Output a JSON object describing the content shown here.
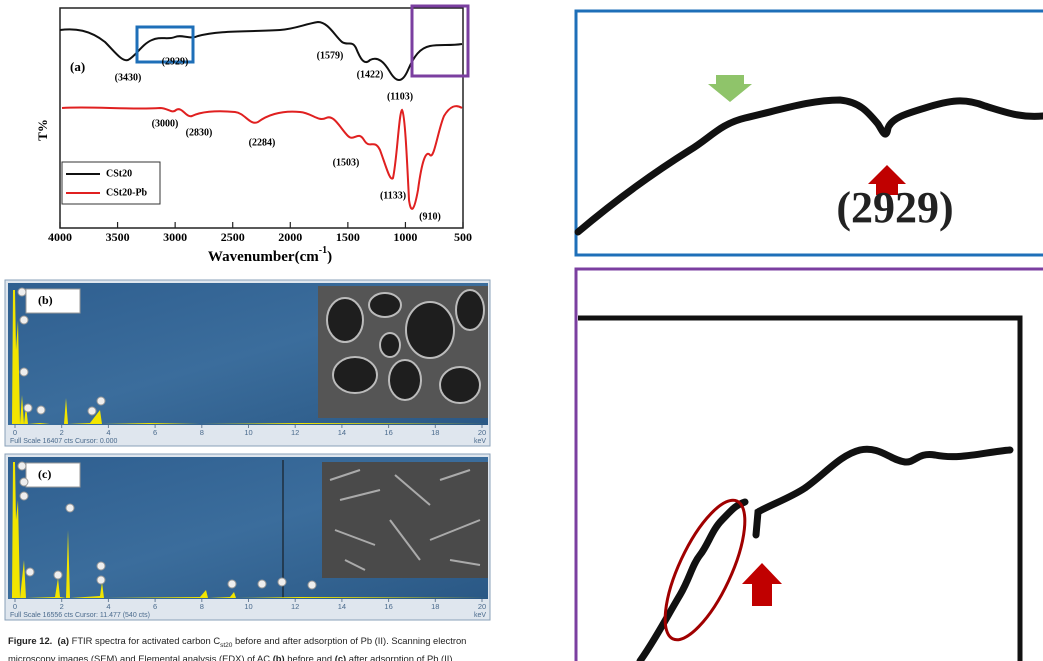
{
  "figure": {
    "panel_a": {
      "label": "(a)",
      "ylabel": "T%",
      "xlabel": "Wavenumber(cm",
      "xlabel_sup": "-1",
      "xlabel_end": ")",
      "xlim": [
        4000,
        500
      ],
      "xticks": [
        4000,
        3500,
        3000,
        2500,
        2000,
        1500,
        1000,
        500
      ],
      "legend": [
        {
          "name": "CSt20",
          "color": "#111111"
        },
        {
          "name": "CSt20-Pb",
          "color": "#e02020"
        }
      ],
      "peaks_black": [
        "(3430)",
        "(2929)",
        "(1579)",
        "(1422)",
        "(1103)"
      ],
      "peaks_red": [
        "(3000)",
        "(2830)",
        "(2284)",
        "(1503)",
        "(1133)",
        "(910)"
      ]
    },
    "panel_b": {
      "label": "(b)",
      "xlim": [
        0,
        20
      ],
      "xticks": [
        0,
        2,
        4,
        6,
        8,
        10,
        12,
        14,
        16,
        18,
        20
      ],
      "status": "Full Scale 16407 cts Cursor: 0.000",
      "unit": "keV"
    },
    "panel_c": {
      "label": "(c)",
      "xlim": [
        0,
        20
      ],
      "xticks": [
        0,
        2,
        4,
        6,
        8,
        10,
        12,
        14,
        16,
        18,
        20
      ],
      "status": "Full Scale 16556 cts Cursor: 11.477  (540 cts)",
      "unit": "keV"
    },
    "zoom_top": {
      "label": "(2929)"
    },
    "caption": {
      "lines": [
        [
          {
            "text": "Figure 12.",
            "style": "bold"
          },
          {
            "text": "  ",
            "style": "normal"
          },
          {
            "text": "(a)",
            "style": "bold"
          },
          {
            "text": " FTIR spectra for activated carbon C",
            "style": "normal"
          },
          {
            "text": "st20",
            "style": "sub"
          },
          {
            "text": " before and after adsorption of Pb (II). Scanning electron",
            "style": "normal"
          }
        ],
        [
          {
            "text": "microscopy images (SEM) and Elemental analysis (EDX) of AC ",
            "style": "normal"
          },
          {
            "text": "(b)",
            "style": "bold"
          },
          {
            "text": " before and ",
            "style": "normal"
          },
          {
            "text": "(c)",
            "style": "bold"
          },
          {
            "text": " after adsorption of Pb (II).",
            "style": "normal"
          }
        ]
      ]
    }
  }
}
